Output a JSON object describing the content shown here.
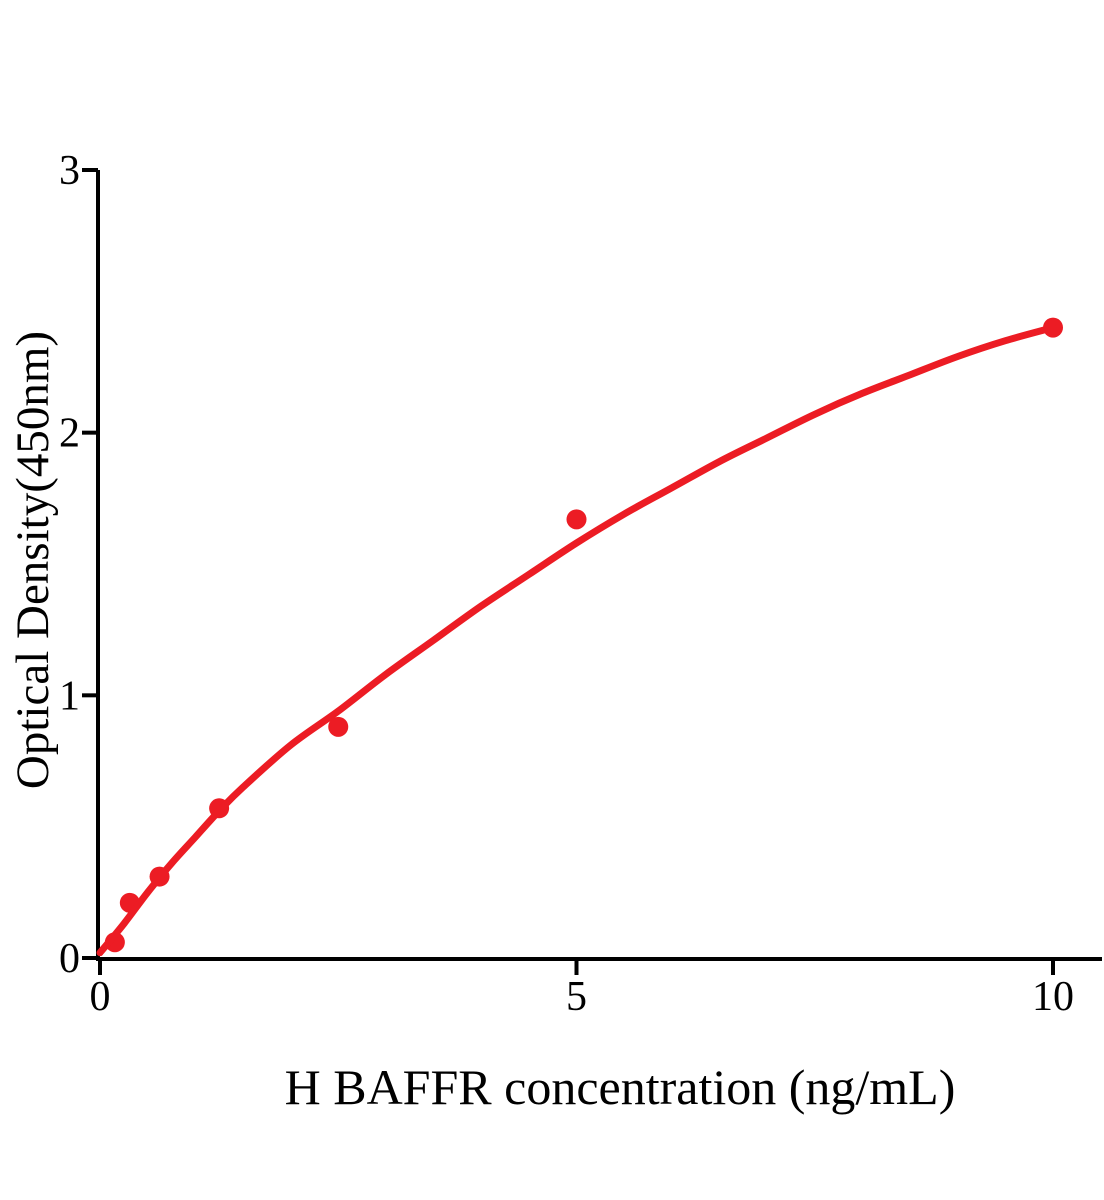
{
  "figure": {
    "background_color": "#ffffff",
    "axis_color": "#000000",
    "accent_red": "#EC1C24"
  },
  "chart_data": {
    "type": "scatter",
    "title": "",
    "xlabel": "H BAFFR concentration (ng/mL)",
    "ylabel": "Optical Density(450nm)",
    "xlim": [
      0,
      10.5
    ],
    "ylim": [
      0,
      3
    ],
    "x_ticks": [
      0,
      5,
      10
    ],
    "y_ticks": [
      0,
      1,
      2,
      3
    ],
    "grid": false,
    "legend_position": "none",
    "point_color": "#EC1C24",
    "line_color": "#EC1C24",
    "series": [
      {
        "name": "standard-data-points",
        "type": "scatter",
        "points": [
          [
            0.156,
            0.06
          ],
          [
            0.313,
            0.21
          ],
          [
            0.625,
            0.31
          ],
          [
            1.25,
            0.57
          ],
          [
            2.5,
            0.88
          ],
          [
            5,
            1.67
          ],
          [
            10,
            2.4
          ]
        ]
      },
      {
        "name": "fitted-standard-curve",
        "type": "line",
        "points": [
          [
            0,
            0.02
          ],
          [
            0.25,
            0.13
          ],
          [
            0.5,
            0.25
          ],
          [
            0.75,
            0.36
          ],
          [
            1,
            0.46
          ],
          [
            1.25,
            0.56
          ],
          [
            1.5,
            0.65
          ],
          [
            2,
            0.81
          ],
          [
            2.5,
            0.94
          ],
          [
            3,
            1.08
          ],
          [
            3.5,
            1.21
          ],
          [
            4,
            1.34
          ],
          [
            4.5,
            1.46
          ],
          [
            5,
            1.58
          ],
          [
            5.5,
            1.69
          ],
          [
            6,
            1.79
          ],
          [
            6.5,
            1.89
          ],
          [
            7,
            1.98
          ],
          [
            7.5,
            2.07
          ],
          [
            8,
            2.15
          ],
          [
            8.5,
            2.22
          ],
          [
            9,
            2.29
          ],
          [
            9.5,
            2.35
          ],
          [
            10,
            2.4
          ]
        ]
      }
    ]
  }
}
